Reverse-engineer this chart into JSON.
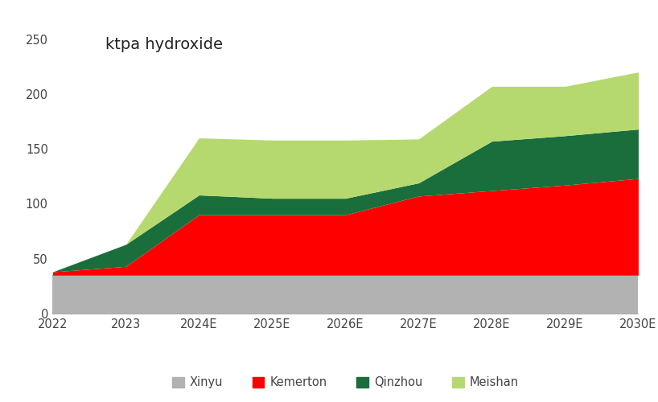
{
  "categories": [
    "2022",
    "2023",
    "2024E",
    "2025E",
    "2026E",
    "2027E",
    "2028E",
    "2029E",
    "2030E"
  ],
  "xinyu": [
    35,
    35,
    35,
    35,
    35,
    35,
    35,
    35,
    35
  ],
  "kemerton": [
    3,
    8,
    55,
    55,
    55,
    72,
    77,
    82,
    88
  ],
  "qinzhou": [
    0,
    20,
    18,
    15,
    15,
    12,
    45,
    45,
    45
  ],
  "meishan": [
    0,
    0,
    52,
    53,
    53,
    40,
    50,
    45,
    52
  ],
  "colors": {
    "xinyu": "#b2b2b2",
    "kemerton": "#ff0000",
    "qinzhou": "#1a6e3c",
    "meishan": "#b5d96e"
  },
  "title": "ktpa hydroxide",
  "ylim": [
    0,
    260
  ],
  "yticks": [
    0,
    50,
    100,
    150,
    200,
    250
  ],
  "background_color": "#ffffff",
  "title_fontsize": 14,
  "legend_fontsize": 10.5,
  "tick_fontsize": 10.5
}
